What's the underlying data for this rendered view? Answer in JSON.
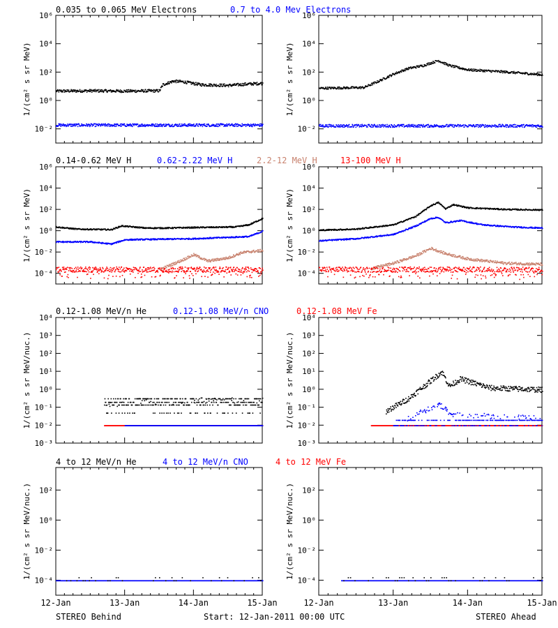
{
  "colors": {
    "black": "#000000",
    "blue": "#0000ff",
    "tan": "#c8826e",
    "red": "#ff0000"
  },
  "footer": {
    "left": "STEREO Behind",
    "center": "Start: 12-Jan-2011 00:00 UTC",
    "right": "STEREO Ahead"
  },
  "chart_data": [
    {
      "id": "electrons",
      "type": "scatter",
      "scale": "log",
      "ylabel": "1/(cm² s sr MeV)",
      "ylim_exp": [
        -3,
        6
      ],
      "ytick_labels": [
        "10⁻²",
        "10⁰",
        "10²",
        "10⁴",
        "10⁶"
      ],
      "xlim_days": [
        0,
        3
      ],
      "xtick_labels": [
        "12-Jan",
        "13-Jan",
        "14-Jan",
        "15-Jan"
      ],
      "legend": [
        {
          "label": "0.035 to 0.065 MeV Electrons",
          "color": "#000000"
        },
        {
          "label": "0.7 to 4.0 Mev Electrons",
          "color": "#0000ff"
        }
      ],
      "panels": [
        {
          "side": "STEREO Behind",
          "series": [
            {
              "color": "#000000",
              "style": "band",
              "scatter": 0.1,
              "log10_values": [
                [
                  0,
                  0.7
                ],
                [
                  0.5,
                  0.72
                ],
                [
                  1.0,
                  0.7
                ],
                [
                  1.5,
                  0.72
                ],
                [
                  1.55,
                  1.15
                ],
                [
                  1.7,
                  1.4
                ],
                [
                  1.85,
                  1.35
                ],
                [
                  2.1,
                  1.15
                ],
                [
                  2.5,
                  1.1
                ],
                [
                  2.8,
                  1.2
                ],
                [
                  3.0,
                  1.25
                ]
              ]
            },
            {
              "color": "#0000ff",
              "style": "band",
              "scatter": 0.1,
              "log10_values": [
                [
                  0,
                  -1.7
                ],
                [
                  3,
                  -1.7
                ]
              ]
            }
          ]
        },
        {
          "side": "STEREO Ahead",
          "series": [
            {
              "color": "#000000",
              "style": "band",
              "scatter": 0.08,
              "log10_values": [
                [
                  0,
                  0.9
                ],
                [
                  0.6,
                  0.95
                ],
                [
                  0.8,
                  1.4
                ],
                [
                  1.0,
                  1.9
                ],
                [
                  1.2,
                  2.3
                ],
                [
                  1.4,
                  2.5
                ],
                [
                  1.6,
                  2.85
                ],
                [
                  1.75,
                  2.5
                ],
                [
                  2.0,
                  2.2
                ],
                [
                  2.5,
                  2.05
                ],
                [
                  3.0,
                  1.85
                ]
              ]
            },
            {
              "color": "#0000ff",
              "style": "band",
              "scatter": 0.1,
              "log10_values": [
                [
                  0,
                  -1.75
                ],
                [
                  3,
                  -1.75
                ]
              ]
            }
          ]
        }
      ]
    },
    {
      "id": "protons",
      "type": "scatter",
      "scale": "log",
      "ylabel": "1/(cm² s sr MeV)",
      "ylim_exp": [
        -5,
        6
      ],
      "ytick_labels": [
        "10⁻⁴",
        "10⁻²",
        "10⁰",
        "10²",
        "10⁴",
        "10⁶"
      ],
      "xlim_days": [
        0,
        3
      ],
      "xtick_labels": [
        "12-Jan",
        "13-Jan",
        "14-Jan",
        "15-Jan"
      ],
      "legend": [
        {
          "label": "0.14-0.62 MeV H",
          "color": "#000000"
        },
        {
          "label": "0.62-2.22 MeV H",
          "color": "#0000ff"
        },
        {
          "label": "2.2-12 MeV H",
          "color": "#c8826e"
        },
        {
          "label": "13-100 MeV H",
          "color": "#ff0000"
        }
      ],
      "panels": [
        {
          "side": "STEREO Behind",
          "series": [
            {
              "color": "#000000",
              "style": "band",
              "scatter": 0.06,
              "log10_values": [
                [
                  0,
                  0.4
                ],
                [
                  0.3,
                  0.2
                ],
                [
                  0.8,
                  0.15
                ],
                [
                  0.95,
                  0.5
                ],
                [
                  1.3,
                  0.3
                ],
                [
                  1.6,
                  0.3
                ],
                [
                  2.0,
                  0.35
                ],
                [
                  2.6,
                  0.4
                ],
                [
                  2.8,
                  0.6
                ],
                [
                  3.0,
                  1.2
                ]
              ]
            },
            {
              "color": "#0000ff",
              "style": "band",
              "scatter": 0.06,
              "log10_values": [
                [
                  0,
                  -1.0
                ],
                [
                  0.5,
                  -1.0
                ],
                [
                  0.8,
                  -1.2
                ],
                [
                  1.0,
                  -0.8
                ],
                [
                  2.0,
                  -0.7
                ],
                [
                  2.8,
                  -0.5
                ],
                [
                  3.0,
                  0.0
                ]
              ]
            },
            {
              "color": "#c8826e",
              "style": "band",
              "scatter": 0.12,
              "log10_values": [
                [
                  1.5,
                  -3.6
                ],
                [
                  1.8,
                  -2.8
                ],
                [
                  2.0,
                  -2.2
                ],
                [
                  2.2,
                  -2.8
                ],
                [
                  2.5,
                  -2.5
                ],
                [
                  2.7,
                  -2.0
                ],
                [
                  3.0,
                  -1.8
                ]
              ]
            },
            {
              "color": "#ff0000",
              "style": "band",
              "scatter": 0.25,
              "log10_values": [
                [
                  0,
                  -3.6
                ],
                [
                  3,
                  -3.6
                ]
              ]
            }
          ]
        },
        {
          "side": "STEREO Ahead",
          "series": [
            {
              "color": "#000000",
              "style": "band",
              "scatter": 0.06,
              "log10_values": [
                [
                  0,
                  0.1
                ],
                [
                  0.5,
                  0.2
                ],
                [
                  1.0,
                  0.6
                ],
                [
                  1.3,
                  1.4
                ],
                [
                  1.5,
                  2.4
                ],
                [
                  1.6,
                  2.7
                ],
                [
                  1.7,
                  2.1
                ],
                [
                  1.8,
                  2.5
                ],
                [
                  2.0,
                  2.2
                ],
                [
                  2.5,
                  2.05
                ],
                [
                  3.0,
                  2.0
                ]
              ]
            },
            {
              "color": "#0000ff",
              "style": "band",
              "scatter": 0.06,
              "log10_values": [
                [
                  0,
                  -0.9
                ],
                [
                  0.5,
                  -0.7
                ],
                [
                  1.0,
                  -0.3
                ],
                [
                  1.3,
                  0.5
                ],
                [
                  1.5,
                  1.2
                ],
                [
                  1.6,
                  1.3
                ],
                [
                  1.7,
                  0.8
                ],
                [
                  1.9,
                  1.0
                ],
                [
                  2.2,
                  0.6
                ],
                [
                  2.6,
                  0.4
                ],
                [
                  3.0,
                  0.3
                ]
              ]
            },
            {
              "color": "#c8826e",
              "style": "band",
              "scatter": 0.12,
              "log10_values": [
                [
                  0.7,
                  -3.5
                ],
                [
                  1.0,
                  -3.0
                ],
                [
                  1.3,
                  -2.3
                ],
                [
                  1.5,
                  -1.6
                ],
                [
                  1.7,
                  -2.1
                ],
                [
                  2.0,
                  -2.6
                ],
                [
                  2.5,
                  -3.0
                ],
                [
                  3.0,
                  -3.1
                ]
              ]
            },
            {
              "color": "#ff0000",
              "style": "band",
              "scatter": 0.25,
              "log10_values": [
                [
                  0,
                  -3.6
                ],
                [
                  3,
                  -3.6
                ]
              ]
            }
          ]
        }
      ]
    },
    {
      "id": "heavy-low",
      "type": "scatter",
      "scale": "log",
      "ylabel": "1/(cm² s sr MeV/nuc.)",
      "ylim_exp": [
        -3,
        4
      ],
      "ytick_labels": [
        "10⁻³",
        "10⁻²",
        "10⁻¹",
        "10⁰",
        "10¹",
        "10²",
        "10³",
        "10⁴"
      ],
      "xlim_days": [
        0,
        3
      ],
      "xtick_labels": [
        "12-Jan",
        "13-Jan",
        "14-Jan",
        "15-Jan"
      ],
      "legend": [
        {
          "label": "0.12-1.08 MeV/n He",
          "color": "#000000"
        },
        {
          "label": "0.12-1.08 MeV/n CNO",
          "color": "#0000ff"
        },
        {
          "label": "0.12-1.08 MeV Fe",
          "color": "#ff0000"
        }
      ],
      "panels": [
        {
          "side": "STEREO Behind",
          "series": [
            {
              "color": "#ff0000",
              "style": "quant",
              "start": 0.7,
              "end": 3.0,
              "levels": [
                -2.0
              ],
              "log10_values": [
                [
                  0.7,
                  -2.0
                ],
                [
                  3,
                  -2.0
                ]
              ]
            },
            {
              "color": "#0000ff",
              "style": "quant",
              "start": 1.0,
              "end": 3.0,
              "levels": [
                -2.0
              ],
              "log10_values": [
                [
                  1.0,
                  -2.0
                ],
                [
                  3,
                  -2.0
                ]
              ]
            },
            {
              "color": "#000000",
              "style": "quant",
              "start": 0.7,
              "end": 3.0,
              "levels": [
                -1.3,
                -0.85,
                -0.7,
                -0.5
              ],
              "log10_values": [
                [
                  0.7,
                  -0.9
                ],
                [
                  1.2,
                  -0.6
                ],
                [
                  1.5,
                  -0.8
                ],
                [
                  2.0,
                  -0.6
                ],
                [
                  3,
                  -0.6
                ]
              ]
            }
          ]
        },
        {
          "side": "STEREO Ahead",
          "series": [
            {
              "color": "#ff0000",
              "style": "quant",
              "start": 0.7,
              "end": 3.0,
              "levels": [
                -2.0
              ],
              "log10_values": [
                [
                  0.7,
                  -2.0
                ],
                [
                  3,
                  -2.0
                ]
              ]
            },
            {
              "color": "#0000ff",
              "style": "quant",
              "start": 1.0,
              "end": 3.0,
              "levels": [
                -2.0,
                -1.7
              ],
              "log10_values": [
                [
                  1.0,
                  -2.0
                ],
                [
                  1.5,
                  -1.0
                ],
                [
                  1.6,
                  -0.8
                ],
                [
                  1.8,
                  -1.4
                ],
                [
                  3,
                  -1.6
                ]
              ]
            },
            {
              "color": "#000000",
              "style": "band",
              "scatter": 0.15,
              "start": 0.9,
              "log10_values": [
                [
                  0.9,
                  -1.2
                ],
                [
                  1.2,
                  -0.5
                ],
                [
                  1.5,
                  0.5
                ],
                [
                  1.65,
                  1.0
                ],
                [
                  1.75,
                  0.2
                ],
                [
                  1.9,
                  0.6
                ],
                [
                  2.3,
                  0.1
                ],
                [
                  3.0,
                  0.0
                ]
              ]
            }
          ]
        }
      ]
    },
    {
      "id": "heavy-high",
      "type": "scatter",
      "scale": "log",
      "ylabel": "1/(cm² s sr MeV/nuc.)",
      "ylim_exp": [
        -5,
        3.5
      ],
      "ytick_labels": [
        "10⁻⁴",
        "10⁻²",
        "10⁰",
        "10²"
      ],
      "xlim_days": [
        0,
        3
      ],
      "xtick_labels": [
        "12-Jan",
        "13-Jan",
        "14-Jan",
        "15-Jan"
      ],
      "legend": [
        {
          "label": "4 to 12 MeV/n He",
          "color": "#000000"
        },
        {
          "label": "4 to 12 MeV/n CNO",
          "color": "#0000ff"
        },
        {
          "label": "4 to 12 MeV Fe",
          "color": "#ff0000"
        }
      ],
      "panels": [
        {
          "side": "STEREO Behind",
          "series": [
            {
              "color": "#0000ff",
              "style": "quant",
              "start": 0.0,
              "end": 3.0,
              "levels": [
                -4.0
              ],
              "log10_values": [
                [
                  0,
                  -4.0
                ],
                [
                  3,
                  -4.0
                ]
              ]
            },
            {
              "color": "#000000",
              "style": "sparse",
              "start": 0.0,
              "end": 3.0,
              "levels": [
                -4.0,
                -3.8
              ],
              "log10_values": [
                [
                  0,
                  -4.0
                ],
                [
                  3,
                  -4.0
                ]
              ]
            }
          ]
        },
        {
          "side": "STEREO Ahead",
          "series": [
            {
              "color": "#0000ff",
              "style": "quant",
              "start": 0.3,
              "end": 3.0,
              "levels": [
                -4.0
              ],
              "log10_values": [
                [
                  0.3,
                  -4.0
                ],
                [
                  3,
                  -4.0
                ]
              ]
            },
            {
              "color": "#000000",
              "style": "sparse",
              "start": 0.3,
              "end": 3.0,
              "levels": [
                -4.0,
                -3.8
              ],
              "log10_values": [
                [
                  0.3,
                  -4.0
                ],
                [
                  3,
                  -4.0
                ]
              ]
            }
          ]
        }
      ]
    }
  ]
}
